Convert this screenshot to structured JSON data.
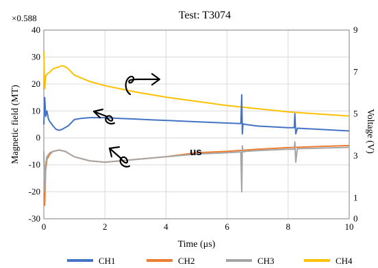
{
  "chart_data": {
    "type": "line",
    "title": "Test: T3074",
    "multiplier_label": "×0.588",
    "xlabel": "Time (μs)",
    "ylabel_left": "Magnetic field (MT)",
    "ylabel_right": "Voltage (V)",
    "xlim": [
      0,
      10
    ],
    "ylim_left": [
      -30,
      40
    ],
    "ylim_right": [
      0,
      9
    ],
    "x_ticks": [
      "0",
      "2",
      "4",
      "6",
      "8",
      "10"
    ],
    "y_ticks_left": [
      "-30",
      "-20",
      "-10",
      "0",
      "10",
      "20",
      "30",
      "40"
    ],
    "y_ticks_right": [
      "0",
      "1",
      "3",
      "5",
      "7",
      "9"
    ],
    "y_tick_values_right": [
      0,
      1,
      3,
      5,
      7,
      9
    ],
    "grid": true,
    "legend_position": "bottom",
    "annotation_text": "us",
    "series": [
      {
        "name": "CH1",
        "axis": "left",
        "color": "#4472c4",
        "x": [
          0,
          0.03,
          0.06,
          0.1,
          0.15,
          0.2,
          0.3,
          0.4,
          0.5,
          0.6,
          0.8,
          1.0,
          1.2,
          1.5,
          2,
          2.5,
          3,
          3.5,
          4,
          5,
          6,
          6.45,
          6.48,
          6.5,
          6.52,
          6.6,
          7,
          8,
          8.2,
          8.22,
          8.25,
          8.3,
          9,
          10
        ],
        "y": [
          5,
          15,
          8,
          10,
          7,
          6,
          4.5,
          3.2,
          2.8,
          3.2,
          4.5,
          6.8,
          7.2,
          7.5,
          7.5,
          7.2,
          7,
          6.7,
          6.5,
          6,
          5.5,
          5.3,
          16,
          1.5,
          5.2,
          5,
          4.4,
          3.8,
          3.8,
          9,
          1.5,
          3.6,
          3.2,
          2.6
        ]
      },
      {
        "name": "CH2",
        "axis": "left",
        "color": "#ed7d31",
        "x": [
          0,
          0.03,
          0.06,
          0.1,
          0.2,
          0.3,
          0.5,
          0.7,
          1.0,
          1.5,
          2,
          3,
          4,
          5,
          6,
          7,
          8,
          9,
          10
        ],
        "y": [
          -5,
          -25,
          -12,
          -8,
          -6,
          -5,
          -4.5,
          -5,
          -7,
          -8.5,
          -9,
          -8,
          -7,
          -5.5,
          -5,
          -4.2,
          -3.6,
          -3.2,
          -2.8
        ]
      },
      {
        "name": "CH3",
        "axis": "left",
        "color": "#a5a5a5",
        "x": [
          0,
          0.03,
          0.06,
          0.1,
          0.2,
          0.3,
          0.5,
          0.7,
          1.0,
          1.5,
          2,
          3,
          4,
          5,
          6,
          6.45,
          6.48,
          6.5,
          6.52,
          6.6,
          7,
          8,
          8.2,
          8.22,
          8.25,
          8.3,
          9,
          10
        ],
        "y": [
          -5,
          -20,
          -10,
          -7,
          -5.5,
          -5,
          -4.5,
          -5,
          -7,
          -8.5,
          -9,
          -8,
          -7,
          -6,
          -5.5,
          -5.2,
          -20,
          -3,
          -5.2,
          -5,
          -4.7,
          -4.2,
          -4.2,
          -1.5,
          -9,
          -4,
          -3.8,
          -3.5
        ]
      },
      {
        "name": "CH4",
        "axis": "right",
        "color": "#ffc000",
        "x": [
          0,
          0.03,
          0.06,
          0.1,
          0.2,
          0.3,
          0.5,
          0.6,
          0.7,
          0.8,
          1.0,
          1.5,
          2,
          2.5,
          3,
          4,
          5,
          6,
          7,
          8,
          9,
          10
        ],
        "y": [
          8.0,
          6.2,
          6.8,
          6.9,
          7.0,
          7.15,
          7.25,
          7.3,
          7.25,
          7.15,
          6.85,
          6.55,
          6.35,
          6.2,
          6.05,
          5.8,
          5.6,
          5.4,
          5.25,
          5.1,
          5.0,
          4.9
        ]
      }
    ]
  }
}
